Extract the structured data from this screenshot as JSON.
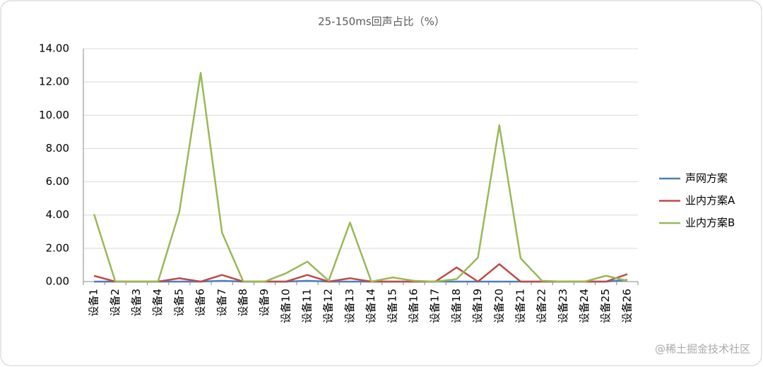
{
  "chart_data": {
    "type": "line",
    "title": "25-150ms回声占比（%）",
    "categories": [
      "设备1",
      "设备2",
      "设备3",
      "设备4",
      "设备5",
      "设备6",
      "设备7",
      "设备8",
      "设备9",
      "设备10",
      "设备11",
      "设备12",
      "设备13",
      "设备14",
      "设备15",
      "设备16",
      "设备17",
      "设备18",
      "设备19",
      "设备20",
      "设备21",
      "设备22",
      "设备23",
      "设备24",
      "设备25",
      "设备26"
    ],
    "series": [
      {
        "name": "声网方案",
        "color": "#4a7ebb",
        "values": [
          0,
          0,
          0,
          0,
          0,
          0,
          0.05,
          0,
          0,
          0,
          0.05,
          0,
          0,
          0,
          0,
          0,
          0,
          0,
          0,
          0,
          0,
          0,
          0,
          0,
          0,
          0.1
        ]
      },
      {
        "name": "业内方案A",
        "color": "#be4b48",
        "values": [
          0.35,
          0,
          0,
          0,
          0.2,
          0,
          0.4,
          0,
          0,
          0,
          0.4,
          0,
          0.2,
          0,
          0,
          0,
          0,
          0.85,
          0,
          1.05,
          0,
          0,
          0,
          0,
          0,
          0.45
        ]
      },
      {
        "name": "业内方案B",
        "color": "#98b954",
        "values": [
          4.05,
          0,
          0,
          0,
          4.2,
          12.55,
          2.95,
          0,
          0,
          0.5,
          1.2,
          0.05,
          3.55,
          0,
          0.25,
          0.05,
          0,
          0.15,
          1.45,
          9.4,
          1.4,
          0.05,
          0,
          0,
          0.35,
          0.05
        ]
      }
    ],
    "ylim": [
      0,
      14
    ],
    "yticks": [
      {
        "value": 0,
        "label": "0.00"
      },
      {
        "value": 2,
        "label": "2.00"
      },
      {
        "value": 4,
        "label": "4.00"
      },
      {
        "value": 6,
        "label": "6.00"
      },
      {
        "value": 8,
        "label": "8.00"
      },
      {
        "value": 10,
        "label": "10.00"
      },
      {
        "value": 12,
        "label": "12.00"
      },
      {
        "value": 14,
        "label": "14.00"
      }
    ],
    "grid": true,
    "legend": "right"
  },
  "watermark": "@稀土掘金技术社区"
}
